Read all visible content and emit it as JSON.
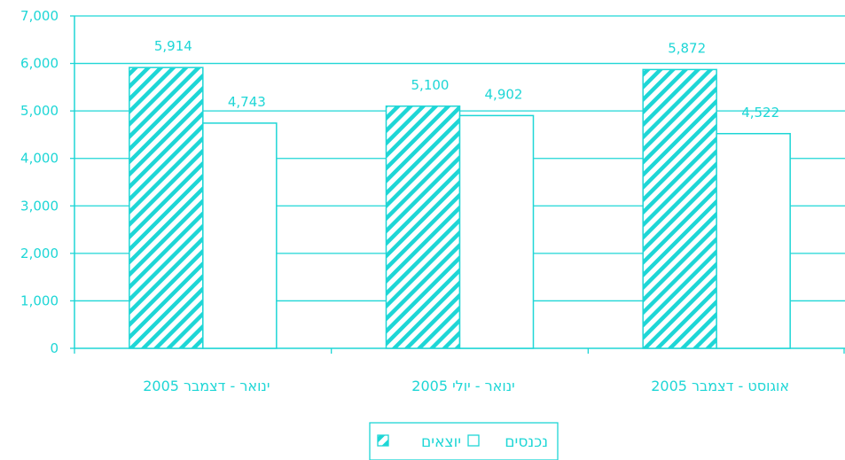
{
  "colors": {
    "accent": "#1ed6d6",
    "background": "#ffffff"
  },
  "chart_data": {
    "type": "bar",
    "categories": [
      "ינואר - דצמבר 2005",
      "ינואר - יולי 2005",
      "אוגוסט - דצמבר 2005"
    ],
    "series": [
      {
        "name": "יוצאים",
        "values": [
          5914,
          5100,
          5872
        ],
        "pattern": "diagonal-hatch"
      },
      {
        "name": "נכנסים",
        "values": [
          4743,
          4902,
          4522
        ],
        "pattern": "hollow"
      }
    ],
    "data_labels": [
      [
        "5,914",
        "5,100",
        "5,872"
      ],
      [
        "4,743",
        "4,902",
        "4,522"
      ]
    ],
    "y_ticks": [
      "0",
      "1,000",
      "2,000",
      "3,000",
      "4,000",
      "5,000",
      "6,000",
      "7,000"
    ],
    "ylim": [
      0,
      7000
    ],
    "grid": true,
    "legend": {
      "placement": "bottom-center",
      "items": [
        "נכנסים",
        "יוצאים"
      ]
    }
  }
}
